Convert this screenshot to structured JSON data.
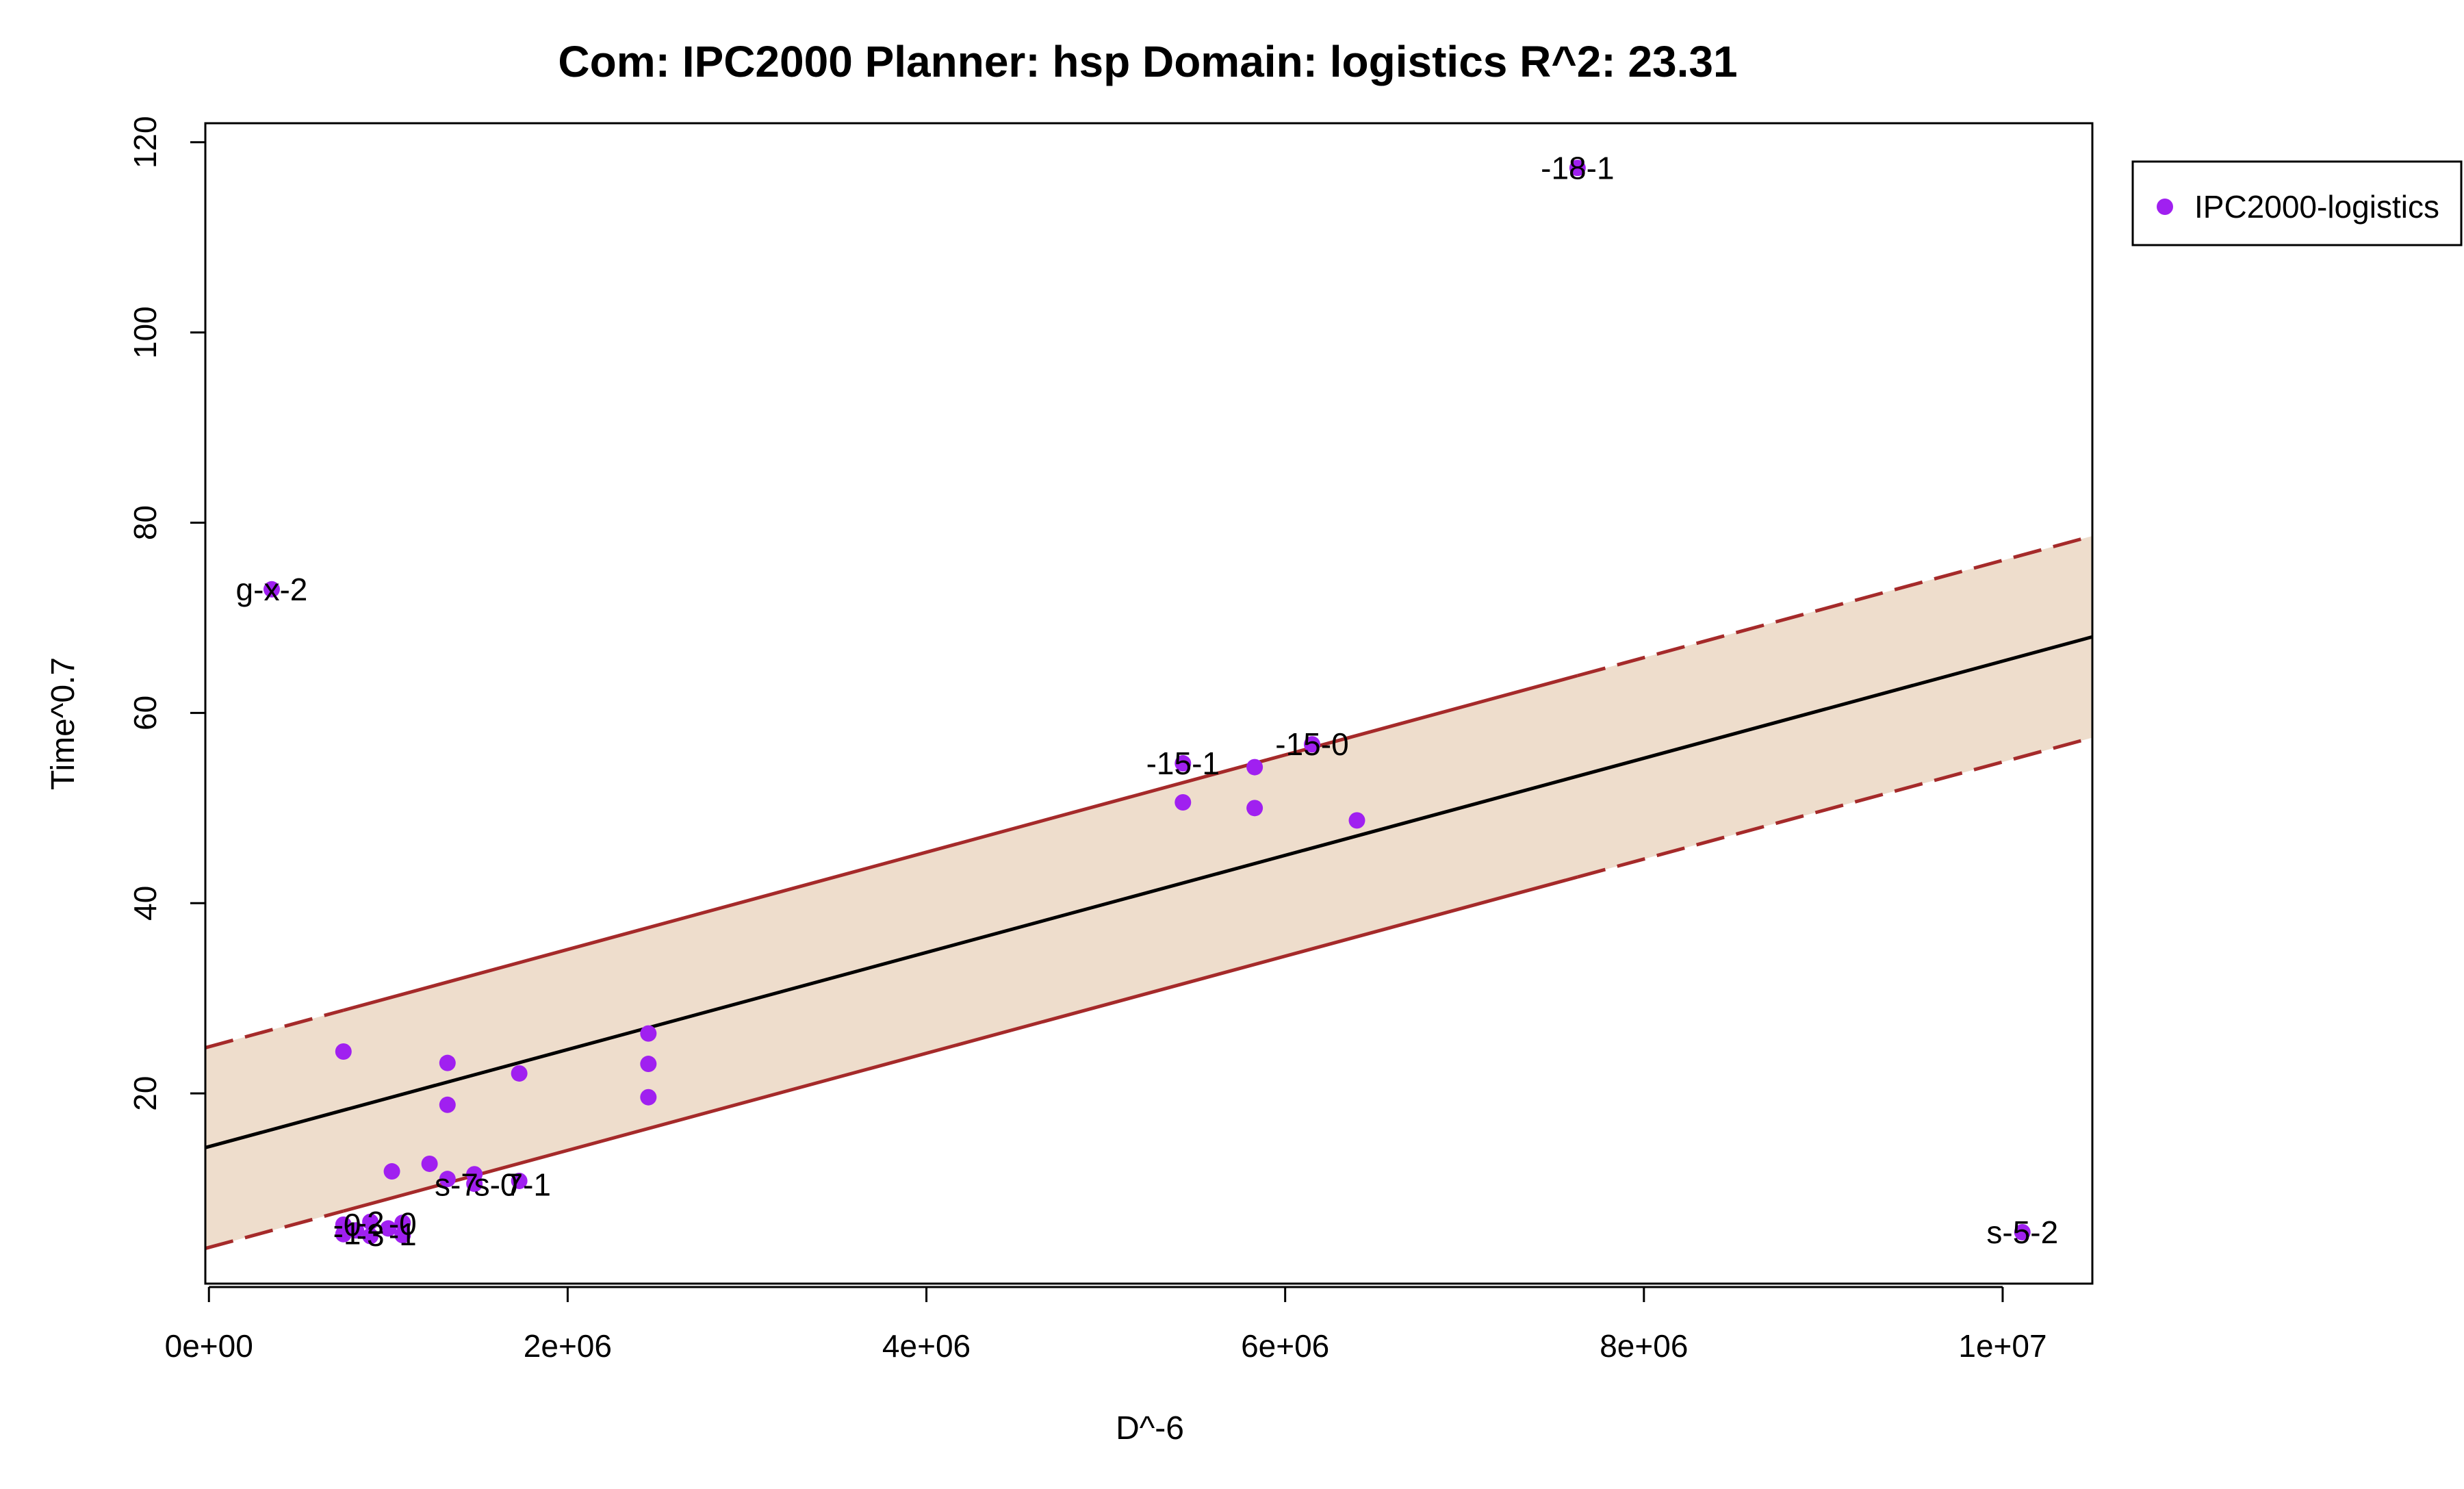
{
  "chart_data": {
    "type": "scatter",
    "title": "Com: IPC2000 Planner: hsp Domain: logistics R^2: 23.31",
    "xlabel": "D^-6",
    "ylabel": "Time^0.7",
    "xlim": [
      -20000,
      10500000
    ],
    "ylim": [
      0,
      122
    ],
    "x_ticks": [
      0,
      2000000,
      4000000,
      6000000,
      8000000,
      10000000
    ],
    "x_tick_labels": [
      "0e+00",
      "2e+06",
      "4e+06",
      "6e+06",
      "8e+06",
      "1e+07"
    ],
    "y_ticks": [
      20,
      40,
      60,
      80,
      100,
      120
    ],
    "y_tick_labels": [
      "20",
      "40",
      "60",
      "80",
      "100",
      "120"
    ],
    "legend": {
      "position": "top-right",
      "entries": [
        "IPC2000-logistics"
      ]
    },
    "colors": {
      "points": "#a020f0",
      "fit_line": "#000000",
      "band_edge": "#a52a2a",
      "band_fill": "#eeddcc"
    },
    "series": [
      {
        "name": "IPC2000-logistics",
        "points": [
          {
            "x": 350000,
            "y": 73.0
          },
          {
            "x": 750000,
            "y": 24.4
          },
          {
            "x": 1020000,
            "y": 11.8
          },
          {
            "x": 1230000,
            "y": 12.6
          },
          {
            "x": 1330000,
            "y": 23.2
          },
          {
            "x": 1330000,
            "y": 18.8
          },
          {
            "x": 1330000,
            "y": 11.0
          },
          {
            "x": 1480000,
            "y": 11.5
          },
          {
            "x": 1480000,
            "y": 10.5
          },
          {
            "x": 1730000,
            "y": 22.1
          },
          {
            "x": 1730000,
            "y": 10.8
          },
          {
            "x": 2450000,
            "y": 26.3
          },
          {
            "x": 2450000,
            "y": 23.1
          },
          {
            "x": 2450000,
            "y": 19.6
          },
          {
            "x": 5430000,
            "y": 54.7
          },
          {
            "x": 5430000,
            "y": 50.6
          },
          {
            "x": 5830000,
            "y": 54.3
          },
          {
            "x": 5830000,
            "y": 50.0
          },
          {
            "x": 6150000,
            "y": 56.7
          },
          {
            "x": 6400000,
            "y": 48.7
          },
          {
            "x": 7630000,
            "y": 117.3
          },
          {
            "x": 10110000,
            "y": 5.4
          },
          {
            "x": 750000,
            "y": 6.2
          },
          {
            "x": 750000,
            "y": 5.2
          },
          {
            "x": 820000,
            "y": 5.6
          },
          {
            "x": 900000,
            "y": 6.5
          },
          {
            "x": 900000,
            "y": 5.0
          },
          {
            "x": 1000000,
            "y": 5.8
          },
          {
            "x": 1080000,
            "y": 6.4
          },
          {
            "x": 1080000,
            "y": 5.1
          }
        ]
      }
    ],
    "fit_line": {
      "x": [
        -20000,
        10500000
      ],
      "y": [
        14.3,
        68.0
      ]
    },
    "band": {
      "solid_range": [
        750000,
        7630000
      ],
      "upper": {
        "x": [
          -20000,
          10500000
        ],
        "y": [
          24.8,
          78.6
        ]
      },
      "lower": {
        "x": [
          -20000,
          10500000
        ],
        "y": [
          3.7,
          57.4
        ]
      }
    },
    "point_labels": [
      {
        "text": "g-x-2",
        "x": 350000,
        "y": 73.0,
        "anchor": "middle"
      },
      {
        "text": "-18-1",
        "x": 7630000,
        "y": 117.3,
        "anchor": "middle"
      },
      {
        "text": "-15-1",
        "x": 5430000,
        "y": 54.7,
        "anchor": "middle"
      },
      {
        "text": "-15-0",
        "x": 6150000,
        "y": 56.7,
        "anchor": "middle"
      },
      {
        "text": "s-5-2",
        "x": 10110000,
        "y": 5.4,
        "anchor": "middle"
      },
      {
        "text": "s-7",
        "x": 1380000,
        "y": 10.4,
        "anchor": "middle"
      },
      {
        "text": "s-0",
        "x": 1600000,
        "y": 10.4,
        "anchor": "middle"
      },
      {
        "text": "7-1",
        "x": 1780000,
        "y": 10.4,
        "anchor": "middle"
      },
      {
        "text": "-0",
        "x": 770000,
        "y": 6.2,
        "anchor": "middle"
      },
      {
        "text": "-1",
        "x": 770000,
        "y": 5.3,
        "anchor": "middle"
      },
      {
        "text": "-2",
        "x": 900000,
        "y": 6.4,
        "anchor": "middle"
      },
      {
        "text": "-3",
        "x": 900000,
        "y": 5.1,
        "anchor": "middle"
      },
      {
        "text": "-0",
        "x": 1080000,
        "y": 6.3,
        "anchor": "middle"
      },
      {
        "text": "-1",
        "x": 1080000,
        "y": 5.2,
        "anchor": "middle"
      }
    ]
  }
}
